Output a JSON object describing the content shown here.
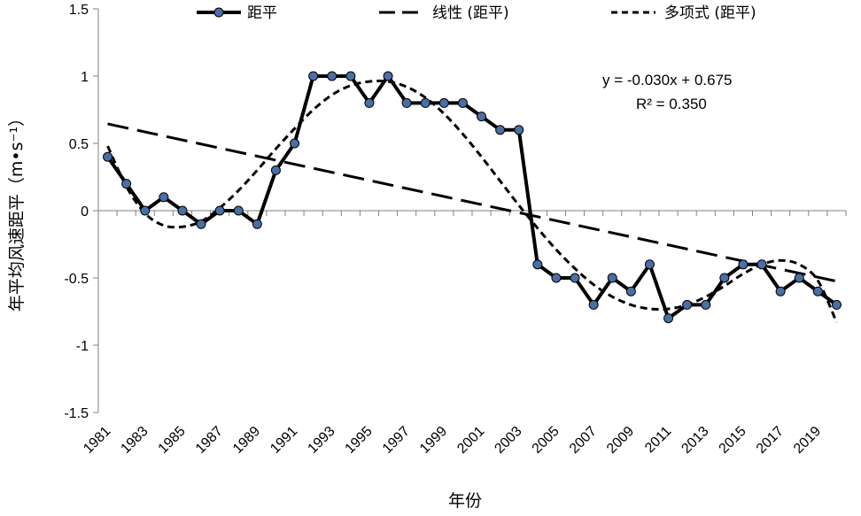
{
  "chart_data": {
    "type": "line",
    "xlabel": "年份",
    "ylabel": "年平均风速距平（m•s⁻¹）",
    "ylim": [
      -1.5,
      1.5
    ],
    "yticks": [
      "1.5",
      "1",
      "0.5",
      "0",
      "-0.5",
      "-1",
      "-1.5"
    ],
    "x": [
      1981,
      1982,
      1983,
      1984,
      1985,
      1986,
      1987,
      1988,
      1989,
      1990,
      1991,
      1992,
      1993,
      1994,
      1995,
      1996,
      1997,
      1998,
      1999,
      2000,
      2001,
      2002,
      2003,
      2004,
      2005,
      2006,
      2007,
      2008,
      2009,
      2010,
      2011,
      2012,
      2013,
      2014,
      2015,
      2016,
      2017,
      2018,
      2019,
      2020
    ],
    "xtick_labels": [
      "1981",
      "1983",
      "1985",
      "1987",
      "1989",
      "1991",
      "1993",
      "1995",
      "1997",
      "1999",
      "2001",
      "2003",
      "2005",
      "2007",
      "2009",
      "2011",
      "2013",
      "2015",
      "2017",
      "2019"
    ],
    "series": [
      {
        "name": "距平",
        "values": [
          0.4,
          0.2,
          0.0,
          0.1,
          0.0,
          -0.1,
          0.0,
          0.0,
          -0.1,
          0.3,
          0.5,
          1.0,
          1.0,
          1.0,
          0.8,
          1.0,
          0.8,
          0.8,
          0.8,
          0.8,
          0.7,
          0.6,
          0.6,
          -0.4,
          -0.5,
          -0.5,
          -0.7,
          -0.5,
          -0.6,
          -0.4,
          -0.8,
          -0.7,
          -0.7,
          -0.5,
          -0.4,
          -0.4,
          -0.6,
          -0.5,
          -0.6,
          -0.7
        ]
      },
      {
        "name": "线性 (距平)",
        "slope": -0.03,
        "intercept": 0.675
      },
      {
        "name": "多项式 (距平)",
        "values": [
          0.48,
          0.18,
          -0.02,
          -0.11,
          -0.12,
          -0.08,
          0.02,
          0.15,
          0.3,
          0.46,
          0.61,
          0.75,
          0.86,
          0.93,
          0.96,
          0.96,
          0.92,
          0.84,
          0.72,
          0.57,
          0.4,
          0.22,
          0.04,
          -0.13,
          -0.29,
          -0.43,
          -0.55,
          -0.64,
          -0.7,
          -0.73,
          -0.73,
          -0.7,
          -0.64,
          -0.56,
          -0.47,
          -0.4,
          -0.37,
          -0.4,
          -0.52,
          -0.83
        ]
      }
    ],
    "annotations": [
      "y = -0.030x + 0.675",
      "R² = 0.350"
    ],
    "legend": "top",
    "grid": false
  },
  "colors": {
    "line": "#000000",
    "marker_fill": "#4a6fa5",
    "axis": "#808080"
  }
}
